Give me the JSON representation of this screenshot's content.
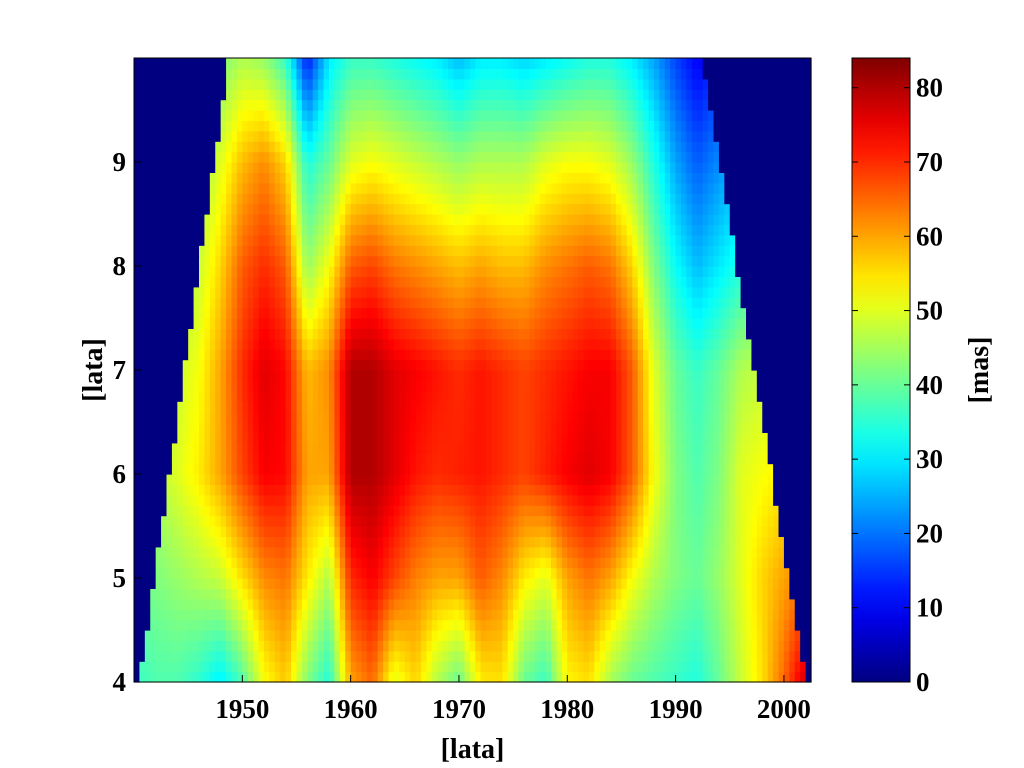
{
  "chart_data": {
    "type": "heatmap",
    "title": "",
    "xlabel": "[lata]",
    "ylabel": "[lata]",
    "colorbar_label": "[mas]",
    "colormap": "jet",
    "xlim": [
      1940,
      2002.5
    ],
    "ylim": [
      4,
      10
    ],
    "clim": [
      0,
      84
    ],
    "x_ticks": [
      1950,
      1960,
      1970,
      1980,
      1990,
      2000
    ],
    "y_ticks": [
      4,
      5,
      6,
      7,
      8,
      9
    ],
    "colorbar_ticks": [
      0,
      10,
      20,
      30,
      40,
      50,
      60,
      70,
      80
    ],
    "cone_of_influence": [
      [
        1940.5,
        4
      ],
      [
        1948.8,
        10
      ],
      [
        1992.5,
        10
      ],
      [
        2002,
        4
      ]
    ],
    "x": [
      1940,
      1942,
      1944,
      1946,
      1948,
      1950,
      1952,
      1954,
      1956,
      1958,
      1960,
      1962,
      1964,
      1966,
      1968,
      1970,
      1972,
      1974,
      1976,
      1978,
      1980,
      1982,
      1984,
      1986,
      1988,
      1990,
      1992,
      1994,
      1996,
      1998,
      2000,
      2002
    ],
    "y": [
      4,
      5,
      6,
      7,
      8,
      9,
      10
    ],
    "z": [
      [
        36,
        38,
        38,
        35,
        30,
        38,
        52,
        57,
        42,
        34,
        60,
        65,
        50,
        56,
        46,
        40,
        54,
        55,
        40,
        36,
        53,
        55,
        45,
        40,
        38,
        36,
        34,
        40,
        48,
        55,
        65,
        78
      ],
      [
        40,
        42,
        44,
        46,
        48,
        55,
        62,
        64,
        54,
        46,
        70,
        74,
        68,
        63,
        60,
        60,
        66,
        62,
        54,
        50,
        60,
        64,
        60,
        52,
        46,
        42,
        40,
        44,
        50,
        56,
        60,
        64
      ],
      [
        44,
        46,
        50,
        54,
        60,
        68,
        74,
        73,
        60,
        60,
        80,
        80,
        76,
        72,
        70,
        71,
        72,
        70,
        68,
        71,
        74,
        76,
        74,
        66,
        52,
        42,
        38,
        42,
        50,
        52,
        54,
        56
      ],
      [
        42,
        44,
        48,
        52,
        60,
        70,
        76,
        73,
        58,
        62,
        80,
        80,
        76,
        74,
        72,
        70,
        72,
        70,
        68,
        70,
        72,
        74,
        74,
        66,
        50,
        40,
        36,
        40,
        46,
        48,
        50,
        50
      ],
      [
        38,
        40,
        44,
        48,
        56,
        66,
        70,
        66,
        44,
        52,
        66,
        68,
        64,
        62,
        60,
        58,
        60,
        58,
        58,
        62,
        64,
        66,
        64,
        56,
        42,
        32,
        26,
        30,
        34,
        36,
        38,
        40
      ],
      [
        34,
        36,
        40,
        44,
        50,
        58,
        62,
        56,
        34,
        40,
        50,
        52,
        50,
        48,
        46,
        44,
        46,
        46,
        46,
        50,
        52,
        52,
        50,
        44,
        34,
        24,
        18,
        22,
        26,
        28,
        30,
        32
      ],
      [
        28,
        30,
        34,
        38,
        42,
        46,
        44,
        36,
        12,
        30,
        36,
        36,
        34,
        32,
        30,
        26,
        30,
        30,
        28,
        30,
        32,
        34,
        34,
        30,
        24,
        16,
        10,
        14,
        18,
        20,
        22,
        24
      ]
    ]
  }
}
